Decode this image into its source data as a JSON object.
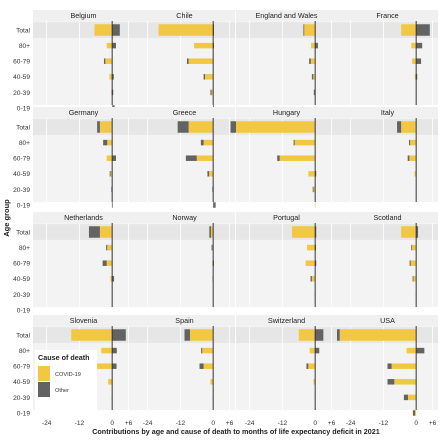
{
  "chart_data": {
    "type": "bar",
    "orientation": "horizontal",
    "layout": "small-multiples",
    "xlabel": "Contributions by age and cause of death to months of life expectancy deficit in 2021",
    "ylabel": "Age group",
    "xlim": [
      -29,
      8
    ],
    "xticks": [
      -24,
      -12,
      0,
      6
    ],
    "xtick_labels": [
      "-24",
      "-12",
      "0",
      "+6"
    ],
    "categories": [
      "Total",
      "80+",
      "60-79",
      "40-59",
      "20-39",
      "0-19"
    ],
    "series": [
      {
        "name": "COVID-19",
        "color": "#f2c744"
      },
      {
        "name": "Other",
        "color": "#636363"
      }
    ],
    "legend": {
      "title": "Cause of death",
      "placement": "inside-bottom-left"
    },
    "total_row_background": "#e6e6e6",
    "panel_background": "#f3f3f3",
    "strip_background": "#f0f0f0",
    "panels": [
      {
        "name": "Belgium",
        "covid": [
          -6.5,
          -2.0,
          -2.5,
          -1.0,
          -0.3,
          0.0
        ],
        "other": [
          2.8,
          1.4,
          -0.5,
          0.6,
          0.4,
          0.9
        ]
      },
      {
        "name": "Chile",
        "covid": [
          -20.0,
          -7.0,
          -9.0,
          -3.0,
          -0.6,
          -0.1
        ],
        "other": [
          0.3,
          0.3,
          -0.6,
          -0.5,
          -0.4,
          0.1
        ]
      },
      {
        "name": "England and Wales",
        "covid": [
          -4.0,
          -1.5,
          -1.6,
          -0.7,
          -0.2,
          0.0
        ],
        "other": [
          -0.3,
          1.0,
          -0.6,
          -0.5,
          -0.3,
          0.0
        ]
      },
      {
        "name": "France",
        "covid": [
          -5.5,
          -1.8,
          -1.5,
          -0.5,
          -0.1,
          0.0
        ],
        "other": [
          5.0,
          2.2,
          1.8,
          0.4,
          0.0,
          0.0
        ]
      },
      {
        "name": "Germany",
        "covid": [
          -4.5,
          -1.8,
          -2.0,
          -0.6,
          -0.1,
          0.0
        ],
        "other": [
          -1.0,
          -1.5,
          1.4,
          -0.3,
          -0.2,
          -0.1
        ]
      },
      {
        "name": "Greece",
        "covid": [
          -9.0,
          -3.5,
          -6.0,
          -1.5,
          -0.2,
          0.0
        ],
        "other": [
          -4.0,
          -1.0,
          -4.0,
          -0.6,
          -0.1,
          0.9
        ]
      },
      {
        "name": "Hungary",
        "covid": [
          -29.0,
          -7.5,
          -13.0,
          -2.5,
          -0.6,
          -0.1
        ],
        "other": [
          -2.0,
          -0.4,
          -0.9,
          0.4,
          -0.3,
          0.0
        ]
      },
      {
        "name": "Italy",
        "covid": [
          -5.5,
          -2.2,
          -2.5,
          -0.6,
          -0.1,
          0.0
        ],
        "other": [
          -1.5,
          -0.4,
          -0.6,
          0.0,
          0.0,
          0.0
        ]
      },
      {
        "name": "Netherlands",
        "covid": [
          -4.5,
          -1.8,
          -2.0,
          -0.6,
          -0.1,
          0.0
        ],
        "other": [
          -4.0,
          -0.4,
          -1.5,
          0.7,
          0.0,
          0.0
        ]
      },
      {
        "name": "Norway",
        "covid": [
          -0.8,
          -0.3,
          -0.3,
          -0.1,
          0.0,
          0.0
        ],
        "other": [
          -0.6,
          -0.3,
          0.1,
          -0.1,
          0.0,
          0.0
        ]
      },
      {
        "name": "Portugal",
        "covid": [
          -8.5,
          -3.0,
          -3.5,
          -1.2,
          -0.2,
          0.0
        ],
        "other": [
          0.4,
          0.3,
          0.4,
          -0.5,
          0.0,
          0.0
        ]
      },
      {
        "name": "Scotland",
        "covid": [
          -5.5,
          -1.5,
          -2.0,
          -1.0,
          -0.2,
          0.0
        ],
        "other": [
          0.7,
          -0.3,
          -0.4,
          -0.3,
          0.0,
          0.0
        ]
      },
      {
        "name": "Slovenia",
        "covid": [
          -15.0,
          -4.0,
          -5.5,
          -1.5,
          -0.2,
          0.0
        ],
        "other": [
          5.0,
          1.7,
          1.6,
          0.0,
          0.0,
          0.0
        ]
      },
      {
        "name": "Spain",
        "covid": [
          -8.5,
          -4.0,
          -3.5,
          -1.0,
          -0.2,
          0.0
        ],
        "other": [
          -2.0,
          -0.4,
          -1.5,
          0.0,
          0.0,
          0.0
        ]
      },
      {
        "name": "Switzerland",
        "covid": [
          -6.0,
          -2.0,
          -2.5,
          -0.6,
          -0.1,
          0.0
        ],
        "other": [
          3.0,
          1.5,
          -0.7,
          0.0,
          0.0,
          0.0
        ]
      },
      {
        "name": "USA",
        "covid": [
          -28.0,
          -3.5,
          -9.0,
          -8.0,
          -3.0,
          -0.4
        ],
        "other": [
          -1.0,
          3.0,
          -1.5,
          -2.5,
          -1.5,
          -0.8
        ]
      }
    ]
  }
}
